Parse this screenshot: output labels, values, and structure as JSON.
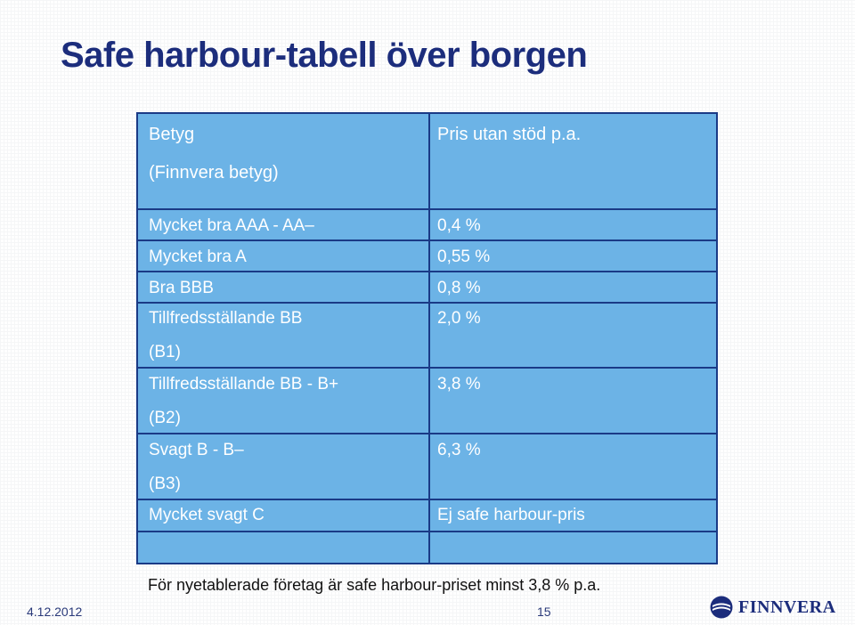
{
  "title": "Safe harbour-tabell över borgen",
  "table": {
    "header": {
      "col1_line1": "Betyg",
      "col1_line2": "(Finnvera betyg)",
      "col2": "Pris utan stöd p.a."
    },
    "rows": [
      {
        "rating": "Mycket bra AAA - AA–",
        "sub": "",
        "price": "0,4 %"
      },
      {
        "rating": "Mycket bra A",
        "sub": "",
        "price": "0,55 %"
      },
      {
        "rating": "Bra BBB",
        "sub": "",
        "price": "0,8 %"
      },
      {
        "rating": "Tillfredsställande BB",
        "sub": "(B1)",
        "price": "2,0 %"
      },
      {
        "rating": "Tillfredsställande BB - B+",
        "sub": "(B2)",
        "price": "3,8 %"
      },
      {
        "rating": "Svagt B - B–",
        "sub": "(B3)",
        "price": "6,3 %"
      },
      {
        "rating": "Mycket svagt C",
        "sub": "",
        "price": "Ej safe harbour-pris"
      }
    ]
  },
  "footnote": "För nyetablerade företag är safe harbour-priset minst 3,8 % p.a.",
  "footer": {
    "date": "4.12.2012",
    "page": "15",
    "logo_text": "FINNVERA"
  },
  "colors": {
    "title": "#1c2d7c",
    "table_fill": "#6cb3e6",
    "table_border": "#1a3a86"
  }
}
